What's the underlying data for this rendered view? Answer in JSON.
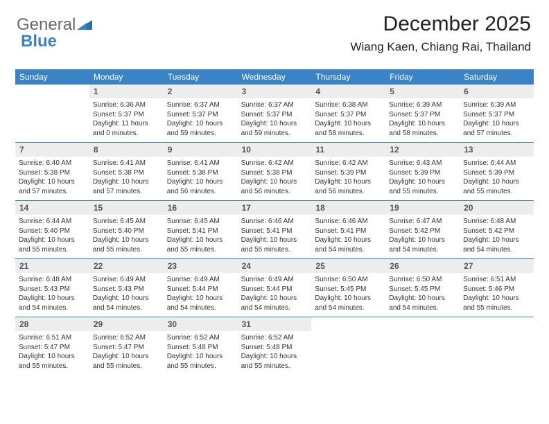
{
  "brand": {
    "word1": "General",
    "word2": "Blue"
  },
  "title": "December 2025",
  "location": "Wiang Kaen, Chiang Rai, Thailand",
  "colors": {
    "header_bg": "#3a83c4",
    "daynum_bg": "#ededed",
    "rule": "#3a83c4",
    "text": "#333333",
    "logo_gray": "#6a6a6a"
  },
  "calendar": {
    "day_headers": [
      "Sunday",
      "Monday",
      "Tuesday",
      "Wednesday",
      "Thursday",
      "Friday",
      "Saturday"
    ],
    "start_offset": 1,
    "days": [
      {
        "n": 1,
        "sunrise": "6:36 AM",
        "sunset": "5:37 PM",
        "daylight": "11 hours and 0 minutes."
      },
      {
        "n": 2,
        "sunrise": "6:37 AM",
        "sunset": "5:37 PM",
        "daylight": "10 hours and 59 minutes."
      },
      {
        "n": 3,
        "sunrise": "6:37 AM",
        "sunset": "5:37 PM",
        "daylight": "10 hours and 59 minutes."
      },
      {
        "n": 4,
        "sunrise": "6:38 AM",
        "sunset": "5:37 PM",
        "daylight": "10 hours and 58 minutes."
      },
      {
        "n": 5,
        "sunrise": "6:39 AM",
        "sunset": "5:37 PM",
        "daylight": "10 hours and 58 minutes."
      },
      {
        "n": 6,
        "sunrise": "6:39 AM",
        "sunset": "5:37 PM",
        "daylight": "10 hours and 57 minutes."
      },
      {
        "n": 7,
        "sunrise": "6:40 AM",
        "sunset": "5:38 PM",
        "daylight": "10 hours and 57 minutes."
      },
      {
        "n": 8,
        "sunrise": "6:41 AM",
        "sunset": "5:38 PM",
        "daylight": "10 hours and 57 minutes."
      },
      {
        "n": 9,
        "sunrise": "6:41 AM",
        "sunset": "5:38 PM",
        "daylight": "10 hours and 56 minutes."
      },
      {
        "n": 10,
        "sunrise": "6:42 AM",
        "sunset": "5:38 PM",
        "daylight": "10 hours and 56 minutes."
      },
      {
        "n": 11,
        "sunrise": "6:42 AM",
        "sunset": "5:39 PM",
        "daylight": "10 hours and 56 minutes."
      },
      {
        "n": 12,
        "sunrise": "6:43 AM",
        "sunset": "5:39 PM",
        "daylight": "10 hours and 55 minutes."
      },
      {
        "n": 13,
        "sunrise": "6:44 AM",
        "sunset": "5:39 PM",
        "daylight": "10 hours and 55 minutes."
      },
      {
        "n": 14,
        "sunrise": "6:44 AM",
        "sunset": "5:40 PM",
        "daylight": "10 hours and 55 minutes."
      },
      {
        "n": 15,
        "sunrise": "6:45 AM",
        "sunset": "5:40 PM",
        "daylight": "10 hours and 55 minutes."
      },
      {
        "n": 16,
        "sunrise": "6:45 AM",
        "sunset": "5:41 PM",
        "daylight": "10 hours and 55 minutes."
      },
      {
        "n": 17,
        "sunrise": "6:46 AM",
        "sunset": "5:41 PM",
        "daylight": "10 hours and 55 minutes."
      },
      {
        "n": 18,
        "sunrise": "6:46 AM",
        "sunset": "5:41 PM",
        "daylight": "10 hours and 54 minutes."
      },
      {
        "n": 19,
        "sunrise": "6:47 AM",
        "sunset": "5:42 PM",
        "daylight": "10 hours and 54 minutes."
      },
      {
        "n": 20,
        "sunrise": "6:48 AM",
        "sunset": "5:42 PM",
        "daylight": "10 hours and 54 minutes."
      },
      {
        "n": 21,
        "sunrise": "6:48 AM",
        "sunset": "5:43 PM",
        "daylight": "10 hours and 54 minutes."
      },
      {
        "n": 22,
        "sunrise": "6:49 AM",
        "sunset": "5:43 PM",
        "daylight": "10 hours and 54 minutes."
      },
      {
        "n": 23,
        "sunrise": "6:49 AM",
        "sunset": "5:44 PM",
        "daylight": "10 hours and 54 minutes."
      },
      {
        "n": 24,
        "sunrise": "6:49 AM",
        "sunset": "5:44 PM",
        "daylight": "10 hours and 54 minutes."
      },
      {
        "n": 25,
        "sunrise": "6:50 AM",
        "sunset": "5:45 PM",
        "daylight": "10 hours and 54 minutes."
      },
      {
        "n": 26,
        "sunrise": "6:50 AM",
        "sunset": "5:45 PM",
        "daylight": "10 hours and 54 minutes."
      },
      {
        "n": 27,
        "sunrise": "6:51 AM",
        "sunset": "5:46 PM",
        "daylight": "10 hours and 55 minutes."
      },
      {
        "n": 28,
        "sunrise": "6:51 AM",
        "sunset": "5:47 PM",
        "daylight": "10 hours and 55 minutes."
      },
      {
        "n": 29,
        "sunrise": "6:52 AM",
        "sunset": "5:47 PM",
        "daylight": "10 hours and 55 minutes."
      },
      {
        "n": 30,
        "sunrise": "6:52 AM",
        "sunset": "5:48 PM",
        "daylight": "10 hours and 55 minutes."
      },
      {
        "n": 31,
        "sunrise": "6:52 AM",
        "sunset": "5:48 PM",
        "daylight": "10 hours and 55 minutes."
      }
    ],
    "labels": {
      "sunrise": "Sunrise:",
      "sunset": "Sunset:",
      "daylight": "Daylight:"
    }
  }
}
